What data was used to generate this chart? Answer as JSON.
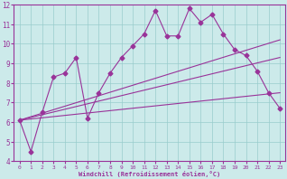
{
  "xlabel": "Windchill (Refroidissement éolien,°C)",
  "xlim": [
    -0.5,
    23.5
  ],
  "ylim": [
    4,
    12
  ],
  "yticks": [
    4,
    5,
    6,
    7,
    8,
    9,
    10,
    11,
    12
  ],
  "xticks": [
    0,
    1,
    2,
    3,
    4,
    5,
    6,
    7,
    8,
    9,
    10,
    11,
    12,
    13,
    14,
    15,
    16,
    17,
    18,
    19,
    20,
    21,
    22,
    23
  ],
  "bg_color": "#cceaea",
  "line_color": "#993399",
  "grid_color": "#99cccc",
  "main_series": {
    "x": [
      0,
      1,
      2,
      3,
      4,
      5,
      6,
      7,
      8,
      9,
      10,
      11,
      12,
      13,
      14,
      15,
      16,
      17,
      18,
      19,
      20,
      21,
      22,
      23
    ],
    "y": [
      6.1,
      4.5,
      6.5,
      8.3,
      8.5,
      9.3,
      6.2,
      7.5,
      8.5,
      9.3,
      9.9,
      10.5,
      11.7,
      10.4,
      10.4,
      11.8,
      11.1,
      11.5,
      10.5,
      9.7,
      9.4,
      8.6,
      7.5,
      6.7
    ]
  },
  "straight_lines": [
    {
      "x": [
        0,
        23
      ],
      "y": [
        6.1,
        9.3
      ]
    },
    {
      "x": [
        0,
        23
      ],
      "y": [
        6.1,
        7.5
      ]
    },
    {
      "x": [
        0,
        23
      ],
      "y": [
        6.1,
        10.2
      ]
    }
  ]
}
